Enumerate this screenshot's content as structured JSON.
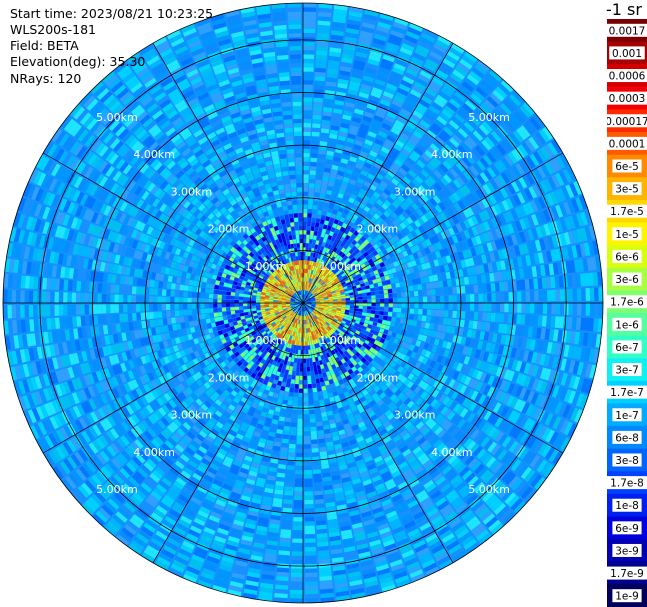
{
  "header": {
    "start_time": "Start time: 2023/08/21 10:23:25",
    "device": "WLS200s-181",
    "field": "Field: BETA",
    "elevation": "Elevation(deg): 35.30",
    "nrays": "NRays: 120"
  },
  "colorbar": {
    "unit": "-1 sr",
    "levels": [
      {
        "label": "0.0017",
        "color": "#7a0000"
      },
      {
        "label": "0.001",
        "color": "#a80000"
      },
      {
        "label": "0.0006",
        "color": "#d40000"
      },
      {
        "label": "0.0003",
        "color": "#f40000"
      },
      {
        "label": "0.00017",
        "color": "#ff2a00"
      },
      {
        "label": "0.0001",
        "color": "#ff5a00"
      },
      {
        "label": "6e-5",
        "color": "#ff8a00"
      },
      {
        "label": "3e-5",
        "color": "#ffb400"
      },
      {
        "label": "1.7e-5",
        "color": "#ffd800"
      },
      {
        "label": "1e-5",
        "color": "#fff400"
      },
      {
        "label": "6e-6",
        "color": "#d8ff10"
      },
      {
        "label": "3e-6",
        "color": "#a8ff40"
      },
      {
        "label": "1.7e-6",
        "color": "#7cff70"
      },
      {
        "label": "1e-6",
        "color": "#55ffa0"
      },
      {
        "label": "6e-7",
        "color": "#30ffc8"
      },
      {
        "label": "3e-7",
        "color": "#10f0f0"
      },
      {
        "label": "1.7e-7",
        "color": "#00d0ff"
      },
      {
        "label": "1e-7",
        "color": "#00aaff"
      },
      {
        "label": "6e-8",
        "color": "#0088ff"
      },
      {
        "label": "3e-8",
        "color": "#0064ff"
      },
      {
        "label": "1.7e-8",
        "color": "#0040ff"
      },
      {
        "label": "1e-8",
        "color": "#0020f0"
      },
      {
        "label": "6e-9",
        "color": "#0000dc"
      },
      {
        "label": "3e-9",
        "color": "#0000b4"
      },
      {
        "label": "1.7e-9",
        "color": "#00008c"
      },
      {
        "label": "1e-9",
        "color": "#00005a"
      }
    ]
  },
  "chart_data": {
    "type": "heatmap",
    "projection": "polar",
    "field": "BETA",
    "rays": 120,
    "range_rings_km": [
      1,
      2,
      3,
      4,
      5
    ],
    "range_labels": [
      "1.00km",
      "2.00km",
      "3.00km",
      "4.00km",
      "5.00km"
    ],
    "max_range_km": 5.7,
    "spokes_deg": [
      0,
      30,
      60,
      90,
      120,
      150,
      180,
      210,
      240,
      270,
      300,
      330
    ],
    "background_level": "1e-7",
    "hotspot": {
      "range_km": [
        0.25,
        0.85
      ],
      "level": "1e-5"
    },
    "grid": true
  }
}
